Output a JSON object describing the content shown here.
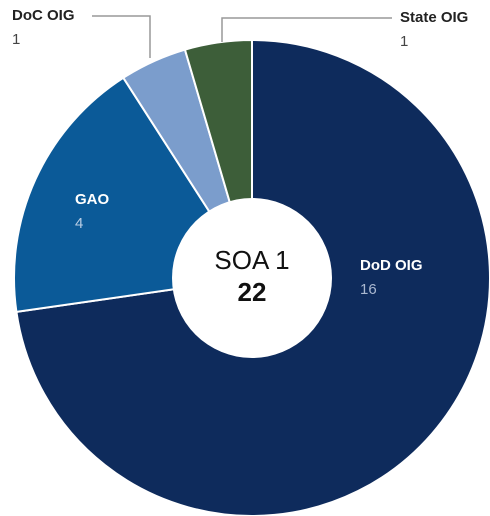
{
  "chart_data": {
    "type": "pie",
    "categories": [
      "DoD OIG",
      "GAO",
      "DoC OIG",
      "State OIG"
    ],
    "values": [
      16,
      4,
      1,
      1
    ],
    "colors": [
      "#0e2b5c",
      "#0b5a98",
      "#7b9dcc",
      "#3d5e39"
    ],
    "center_label": "SOA 1",
    "center_value": 22
  }
}
